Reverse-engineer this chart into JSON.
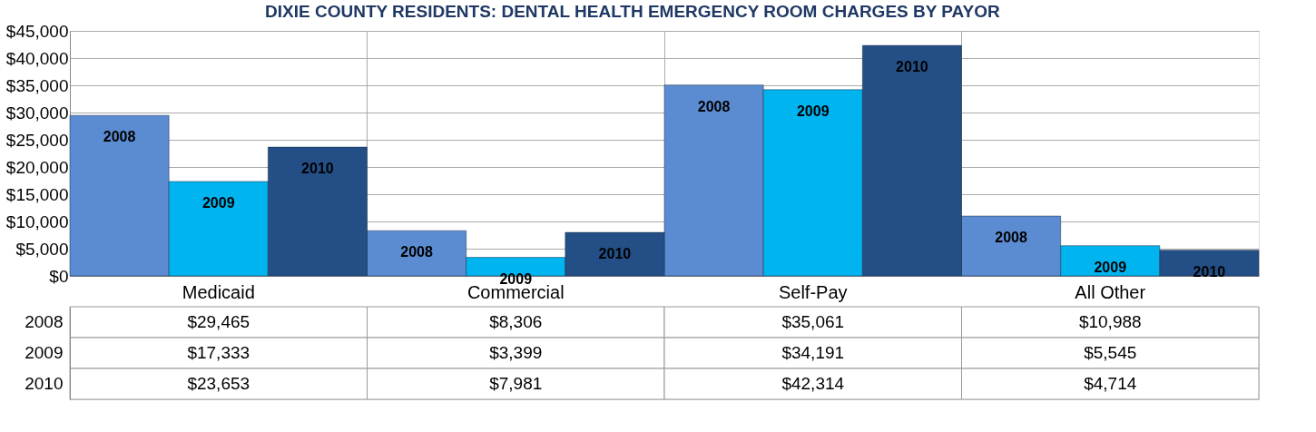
{
  "chart_data": {
    "type": "bar",
    "title": "DIXIE COUNTY RESIDENTS: DENTAL HEALTH EMERGENCY ROOM CHARGES BY PAYOR",
    "categories": [
      "Medicaid",
      "Commercial",
      "Self-Pay",
      "All Other"
    ],
    "series": [
      {
        "name": "2008",
        "color": "#5b8bd0",
        "values": [
          29465,
          8306,
          35061,
          10988
        ],
        "value_labels": [
          "$29,465",
          "$8,306",
          "$35,061",
          "$10,988"
        ]
      },
      {
        "name": "2009",
        "color": "#00b4f0",
        "values": [
          17333,
          3399,
          34191,
          5545
        ],
        "value_labels": [
          "$17,333",
          "$3,399",
          "$34,191",
          "$5,545"
        ]
      },
      {
        "name": "2010",
        "color": "#234f86",
        "values": [
          23653,
          7981,
          42314,
          4714
        ],
        "value_labels": [
          "$23,653",
          "$7,981",
          "$42,314",
          "$4,714"
        ]
      }
    ],
    "ylim": [
      0,
      45000
    ],
    "yticks": [
      {
        "value": 0,
        "label": "$0"
      },
      {
        "value": 5000,
        "label": "$5,000"
      },
      {
        "value": 10000,
        "label": "$10,000"
      },
      {
        "value": 15000,
        "label": "$15,000"
      },
      {
        "value": 20000,
        "label": "$20,000"
      },
      {
        "value": 25000,
        "label": "$25,000"
      },
      {
        "value": 30000,
        "label": "$30,000"
      },
      {
        "value": 35000,
        "label": "$35,000"
      },
      {
        "value": 40000,
        "label": "$40,000"
      },
      {
        "value": 45000,
        "label": "$45,000"
      }
    ],
    "grid": true,
    "legend": false
  }
}
